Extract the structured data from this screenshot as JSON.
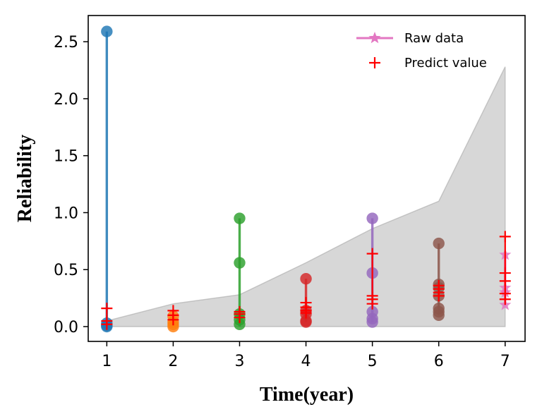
{
  "chart_data": {
    "type": "scatter",
    "xlabel": "Time(year)",
    "ylabel": "Reliability",
    "xlim": [
      0.72,
      7.3
    ],
    "ylim": [
      -0.13,
      2.73
    ],
    "xticks": [
      1,
      2,
      3,
      4,
      5,
      6,
      7
    ],
    "yticks": [
      0.0,
      0.5,
      1.0,
      1.5,
      2.0,
      2.5
    ],
    "xtick_labels": [
      "1",
      "2",
      "3",
      "4",
      "5",
      "6",
      "7"
    ],
    "ytick_labels": [
      "0.0",
      "0.5",
      "1.0",
      "1.5",
      "2.0",
      "2.5"
    ],
    "legend_position": "top-right",
    "legend": [
      {
        "label": "Raw data",
        "color": "#e377c2",
        "marker": "star-line"
      },
      {
        "label": "Predict value",
        "color": "#ff0000",
        "marker": "plus"
      }
    ],
    "band": {
      "color": "#bfbfbf",
      "x": [
        1,
        2,
        3,
        4,
        5,
        6,
        7
      ],
      "upper": [
        0.05,
        0.2,
        0.28,
        0.56,
        0.86,
        1.1,
        2.28
      ],
      "lower": [
        0,
        0,
        0,
        0,
        0,
        0,
        0
      ]
    },
    "raw_series": [
      {
        "x": 1,
        "color": "#1f77b4",
        "line": [
          0.0,
          2.59
        ],
        "points": [
          2.59,
          0.03,
          0.01,
          0.0
        ]
      },
      {
        "x": 2,
        "color": "#ff7f0e",
        "line": [
          0.0,
          0.09
        ],
        "points": [
          0.09,
          0.04,
          0.02,
          0.0
        ]
      },
      {
        "x": 3,
        "color": "#2ca02c",
        "line": [
          0.0,
          0.95
        ],
        "points": [
          0.95,
          0.56,
          0.11,
          0.06,
          0.02
        ]
      },
      {
        "x": 4,
        "color": "#d62728",
        "line": [
          0.04,
          0.42
        ],
        "points": [
          0.42,
          0.14,
          0.11,
          0.05,
          0.04
        ]
      },
      {
        "x": 5,
        "color": "#9467bd",
        "line": [
          0.04,
          0.95
        ],
        "points": [
          0.95,
          0.47,
          0.13,
          0.07,
          0.04
        ]
      },
      {
        "x": 6,
        "color": "#8c564b",
        "line": [
          0.1,
          0.73
        ],
        "points": [
          0.73,
          0.37,
          0.34,
          0.27,
          0.16,
          0.13,
          0.1
        ]
      },
      {
        "x": 7,
        "color": "#e377c2",
        "line": [
          0.19,
          0.63
        ],
        "points": [
          0.63,
          0.34,
          0.3,
          0.19
        ],
        "marker": "star"
      }
    ],
    "predict_series": [
      {
        "x": 1,
        "color": "#ff0000",
        "line": [
          0.02,
          0.16
        ],
        "points": [
          0.16,
          0.05,
          0.02
        ]
      },
      {
        "x": 2,
        "color": "#ff0000",
        "line": [
          0.06,
          0.14
        ],
        "points": [
          0.14,
          0.1,
          0.06
        ]
      },
      {
        "x": 3,
        "color": "#ff0000",
        "line": [
          0.08,
          0.13
        ],
        "points": [
          0.13,
          0.11,
          0.08
        ]
      },
      {
        "x": 4,
        "color": "#ff0000",
        "line": [
          0.12,
          0.21
        ],
        "points": [
          0.21,
          0.17,
          0.14,
          0.12
        ]
      },
      {
        "x": 5,
        "color": "#ff0000",
        "line": [
          0.2,
          0.64
        ],
        "points": [
          0.64,
          0.27,
          0.24,
          0.2
        ]
      },
      {
        "x": 6,
        "color": "#ff0000",
        "line": [
          0.27,
          0.36
        ],
        "points": [
          0.36,
          0.33,
          0.3,
          0.27
        ]
      },
      {
        "x": 7,
        "color": "#ff0000",
        "line": [
          0.24,
          0.79
        ],
        "points": [
          0.79,
          0.47,
          0.4,
          0.29,
          0.24
        ]
      }
    ]
  }
}
